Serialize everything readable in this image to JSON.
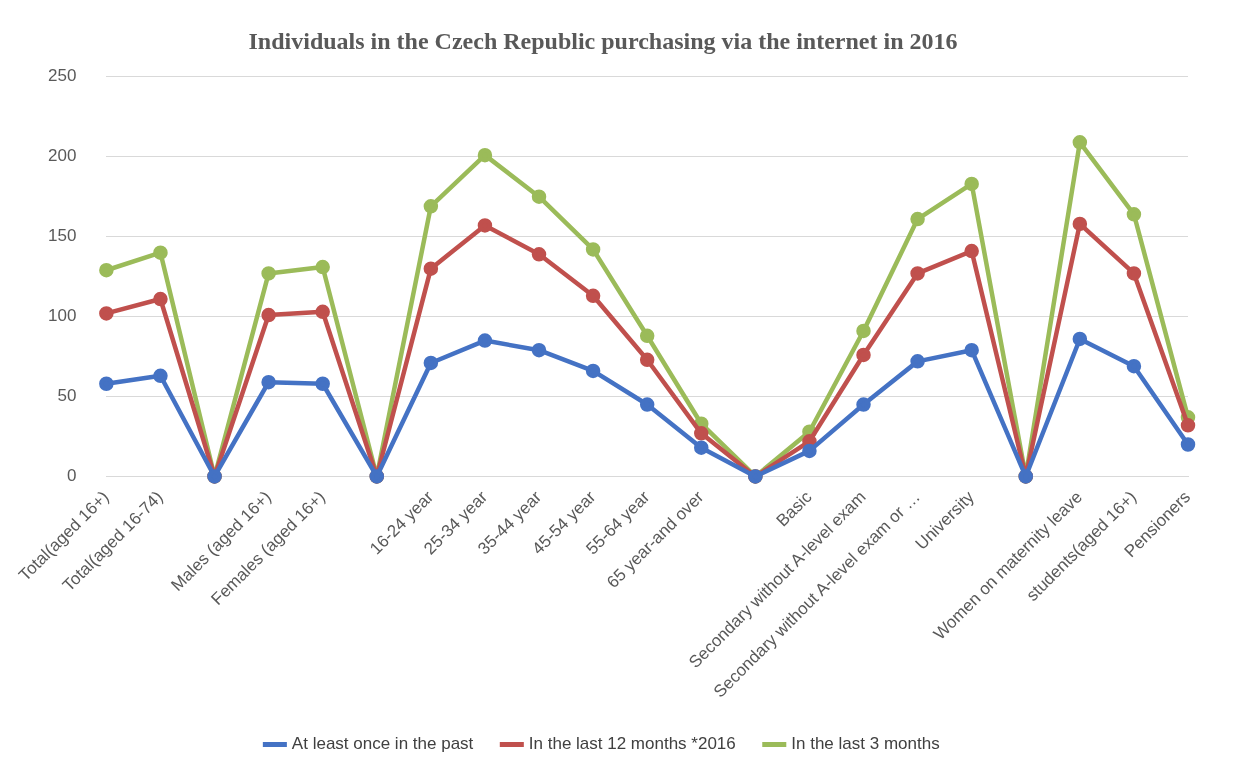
{
  "chart_data": {
    "type": "line",
    "title": "Individuals in the Czech Republic purchasing via the internet in 2016",
    "categories": [
      "Total(aged 16+)",
      "Total(aged 16-74)",
      null,
      "Males (aged 16+)",
      "Females (aged 16+)",
      null,
      "16-24 year",
      "25-34 year",
      "35-44 year",
      "45-54 year",
      "55-64 year",
      "65 year-and over",
      null,
      "Basic",
      "Secondary without A-level exam",
      "Secondary without A-level exam or …",
      "University",
      null,
      "Women on maternity leave",
      "students(aged 16+)",
      "Pensioners"
    ],
    "series": [
      {
        "name": "At least once in the past",
        "color": "#4472c4",
        "values": [
          58,
          63,
          0,
          59,
          58,
          0,
          71,
          85,
          79,
          66,
          45,
          18,
          0,
          16,
          45,
          72,
          79,
          0,
          86,
          69,
          20
        ]
      },
      {
        "name": "In the last 12 months *2016",
        "color": "#c0504d",
        "values": [
          102,
          111,
          0,
          101,
          103,
          0,
          130,
          157,
          139,
          113,
          73,
          27,
          0,
          22,
          76,
          127,
          141,
          0,
          158,
          127,
          32
        ]
      },
      {
        "name": "In the last 3 months",
        "color": "#9bbb59",
        "values": [
          129,
          140,
          0,
          127,
          131,
          0,
          169,
          201,
          175,
          142,
          88,
          33,
          0,
          28,
          91,
          161,
          183,
          0,
          209,
          164,
          37
        ]
      }
    ],
    "ylim": [
      0,
      250
    ],
    "yticks": [
      0,
      50,
      100,
      150,
      200,
      250
    ],
    "grid": "y",
    "legend": "bottom",
    "marker": "circle",
    "line_style": "solid"
  }
}
